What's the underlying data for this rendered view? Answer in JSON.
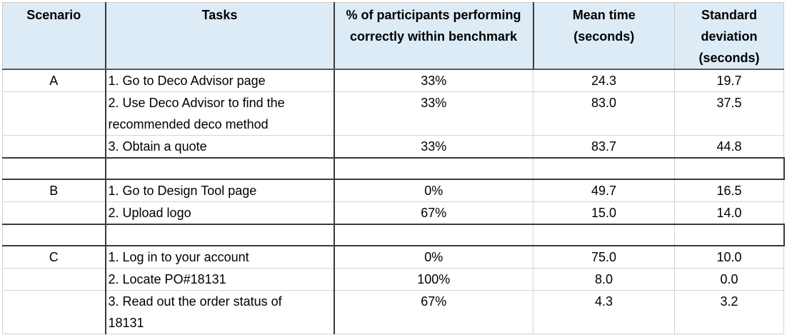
{
  "table": {
    "headers": {
      "scenario": "Scenario",
      "tasks": "Tasks",
      "pct_line1": "% of participants performing",
      "pct_line2": "correctly within benchmark",
      "mean_line1": "Mean time",
      "mean_line2": "(seconds)",
      "sd_line1": "Standard",
      "sd_line2": "deviation",
      "sd_line3": "(seconds)"
    },
    "groups": [
      {
        "scenario": "A",
        "rows": [
          {
            "task": "1. Go to Deco Advisor page",
            "pct": "33%",
            "mean": "24.3",
            "sd": "19.7"
          },
          {
            "task": "2. Use Deco Advisor to find the",
            "task_line2": "recommended deco method",
            "pct": "33%",
            "mean": "83.0",
            "sd": "37.5"
          },
          {
            "task": "3. Obtain a quote",
            "pct": "33%",
            "mean": "83.7",
            "sd": "44.8"
          }
        ]
      },
      {
        "scenario": "B",
        "rows": [
          {
            "task": "1. Go to Design Tool page",
            "pct": "0%",
            "mean": "49.7",
            "sd": "16.5"
          },
          {
            "task": "2. Upload logo",
            "pct": "67%",
            "mean": "15.0",
            "sd": "14.0"
          }
        ]
      },
      {
        "scenario": "C",
        "rows": [
          {
            "task": "1. Log in to your account",
            "pct": "0%",
            "mean": "75.0",
            "sd": "10.0"
          },
          {
            "task": "2. Locate PO#18131",
            "pct": "100%",
            "mean": "8.0",
            "sd": "0.0"
          },
          {
            "task": "3. Read out the order status of",
            "task_line2": "18131",
            "pct": "67%",
            "mean": "4.3",
            "sd": "3.2"
          }
        ]
      }
    ]
  }
}
